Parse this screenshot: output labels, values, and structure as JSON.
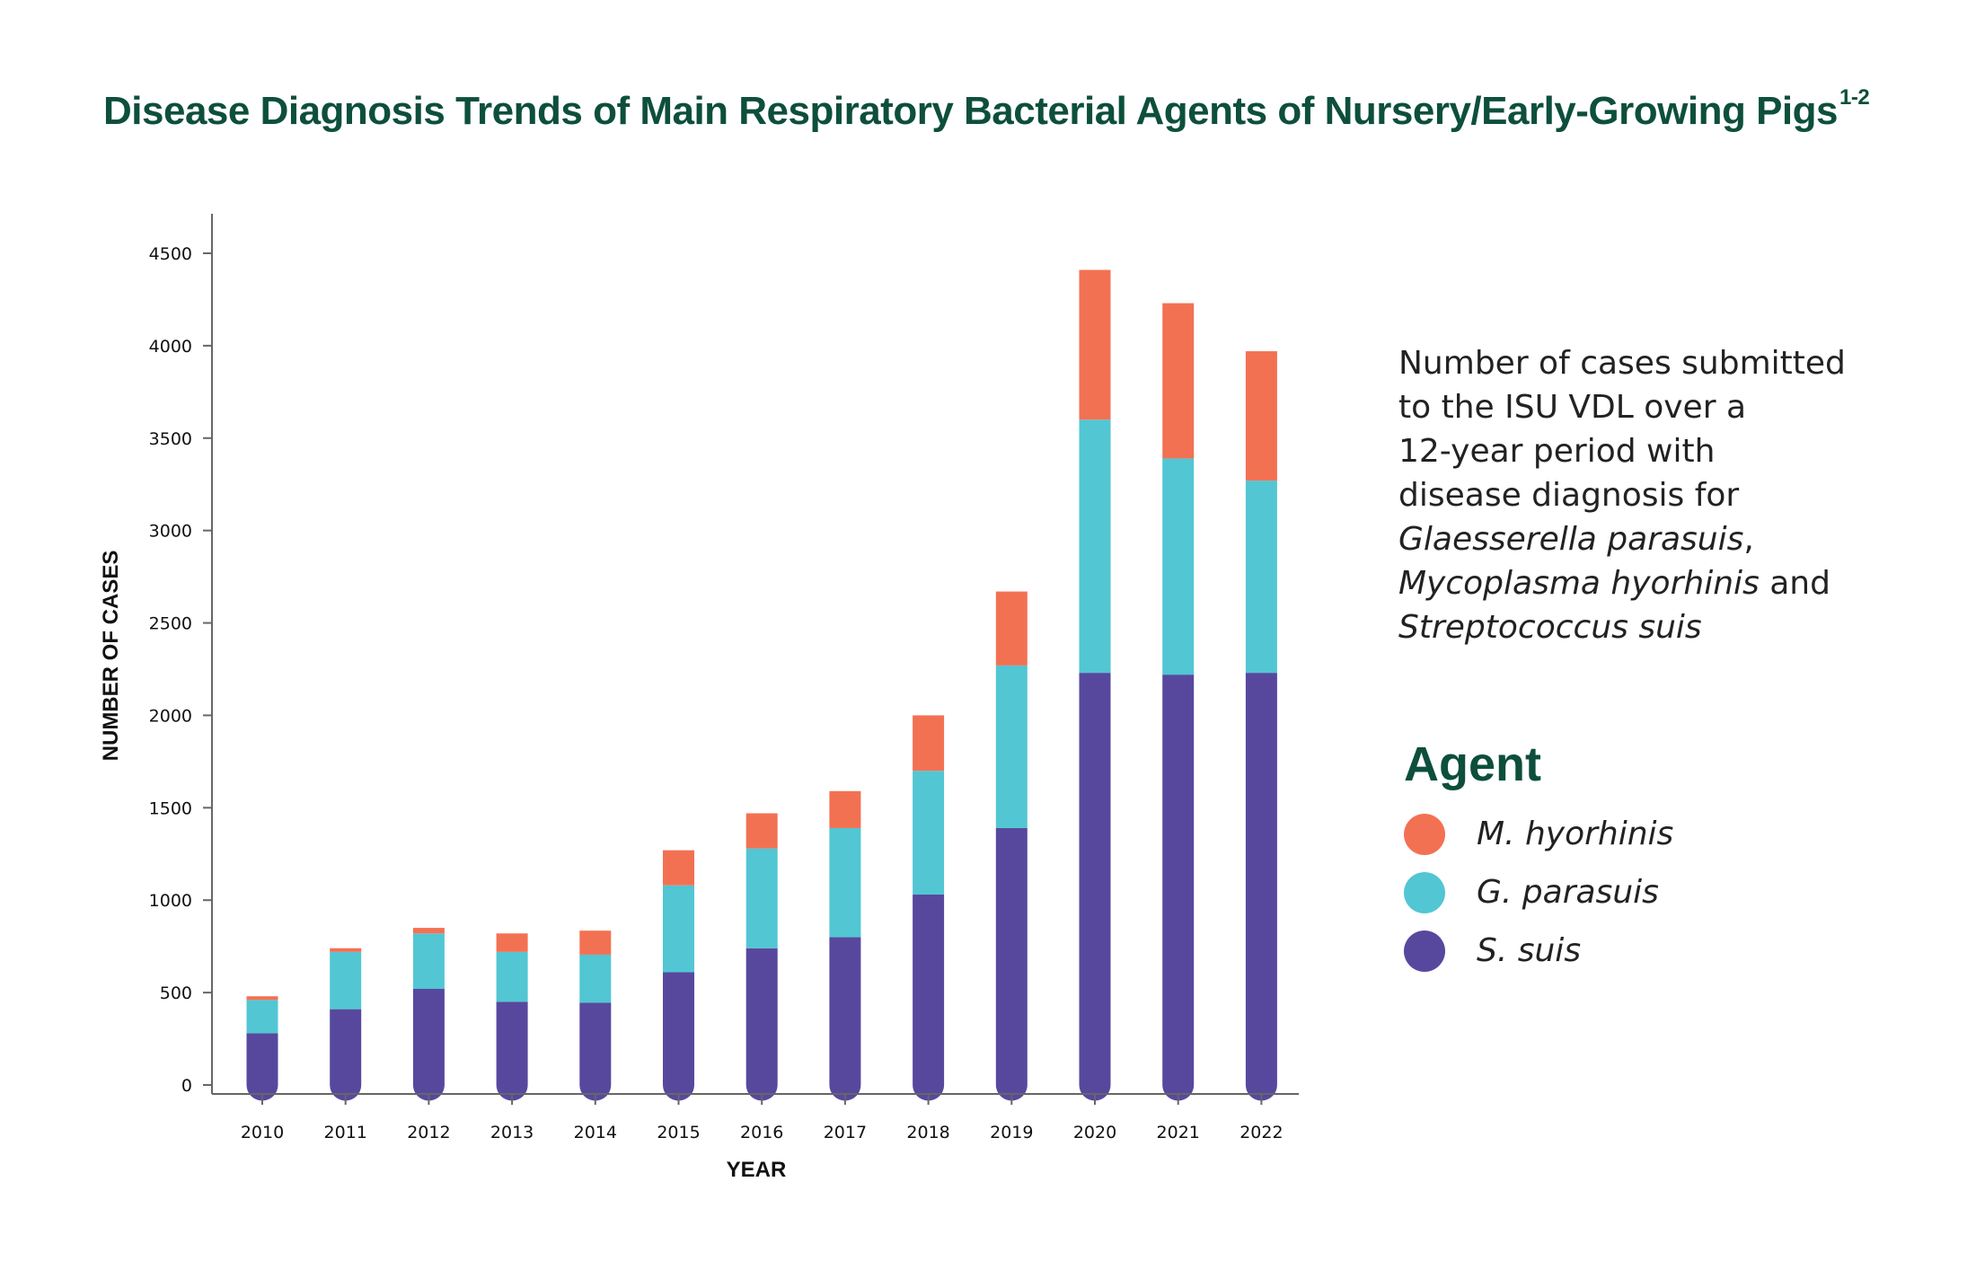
{
  "title": "Disease Diagnosis Trends of Main Respiratory Bacterial Agents of Nursery/Early-Growing Pigs",
  "title_superscript": "1-2",
  "note": {
    "line1": "Number of cases submitted",
    "line2": "to the ISU VDL over a",
    "line3": "12-year period with",
    "line4": "disease diagnosis for",
    "species1": "Glaesserella parasuis",
    "sep1": ",",
    "species2": "Mycoplasma hyorhinis",
    "conj": " and",
    "species3": "Streptococcus suis"
  },
  "legend": {
    "title": "Agent",
    "items": [
      {
        "label": "M. hyorhinis",
        "color": "#f37153"
      },
      {
        "label": "G. parasuis",
        "color": "#52c6d3"
      },
      {
        "label": "S. suis",
        "color": "#57489e"
      }
    ]
  },
  "chart_data": {
    "type": "bar",
    "stacked": true,
    "xlabel": "YEAR",
    "ylabel": "NUMBER OF CASES",
    "ylim": [
      0,
      4500
    ],
    "yticks": [
      0,
      500,
      1000,
      1500,
      2000,
      2500,
      3000,
      3500,
      4000,
      4500
    ],
    "grid": false,
    "legend_position": "right",
    "categories": [
      "2010",
      "2011",
      "2012",
      "2013",
      "2014",
      "2015",
      "2016",
      "2017",
      "2018",
      "2019",
      "2020",
      "2021",
      "2022"
    ],
    "series": [
      {
        "name": "S. suis",
        "color": "#57489e",
        "values": [
          280,
          410,
          520,
          450,
          445,
          610,
          740,
          800,
          1030,
          1390,
          2230,
          2220,
          2230
        ]
      },
      {
        "name": "G. parasuis",
        "color": "#52c6d3",
        "values": [
          180,
          310,
          300,
          270,
          260,
          470,
          540,
          590,
          670,
          880,
          1370,
          1170,
          1040
        ]
      },
      {
        "name": "M. hyorhinis",
        "color": "#f37153",
        "values": [
          20,
          20,
          30,
          100,
          130,
          190,
          190,
          200,
          300,
          400,
          810,
          840,
          700
        ]
      }
    ]
  }
}
